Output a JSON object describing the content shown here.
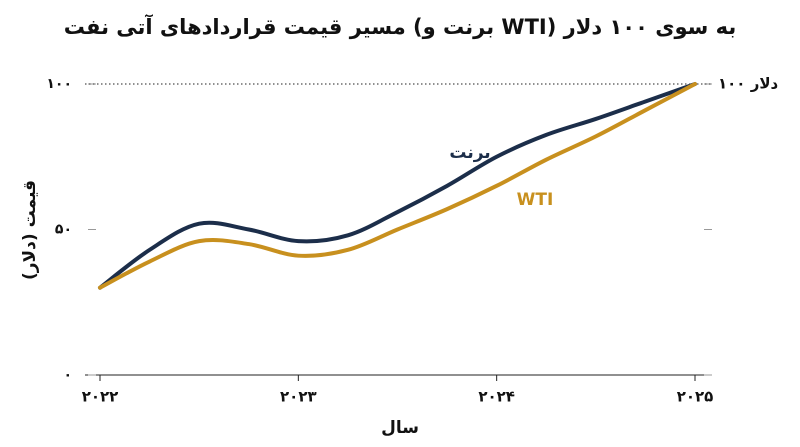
{
  "chart_data": {
    "type": "line",
    "title": "مسیر قیمت قراردادهای آتی نفت (برنت و WTI) به سوی ۱۰۰ دلار",
    "x_label": "سال",
    "y_label": "قیمت (دلار)",
    "x": [
      2022,
      2022.25,
      2022.5,
      2022.75,
      2023,
      2023.25,
      2023.5,
      2023.75,
      2024,
      2024.25,
      2024.5,
      2024.75,
      2025
    ],
    "series": [
      {
        "name": "برنت",
        "color": "#1c2e4a",
        "values": [
          30,
          43,
          52,
          50,
          46,
          48,
          56,
          65,
          75,
          82.5,
          88,
          94,
          100
        ]
      },
      {
        "name": "WTI",
        "color": "#c8901e",
        "values": [
          30,
          39,
          46,
          45,
          41,
          43,
          50,
          57,
          65,
          74,
          82,
          91,
          100
        ]
      }
    ],
    "xlim": [
      2022,
      2025
    ],
    "xticks": [
      {
        "value": 2022,
        "label": "۲۰۲۲"
      },
      {
        "value": 2023,
        "label": "۲۰۲۳"
      },
      {
        "value": 2024,
        "label": "۲۰۲۴"
      },
      {
        "value": 2025,
        "label": "۲۰۲۵"
      }
    ],
    "ylim": [
      0,
      100
    ],
    "yticks": [
      {
        "value": 0,
        "label": "۰"
      },
      {
        "value": 50,
        "label": "۵۰"
      },
      {
        "value": 100,
        "label": "۱۰۰"
      }
    ],
    "reference_line": {
      "value": 100,
      "label": "۱۰۰ دلار"
    }
  }
}
